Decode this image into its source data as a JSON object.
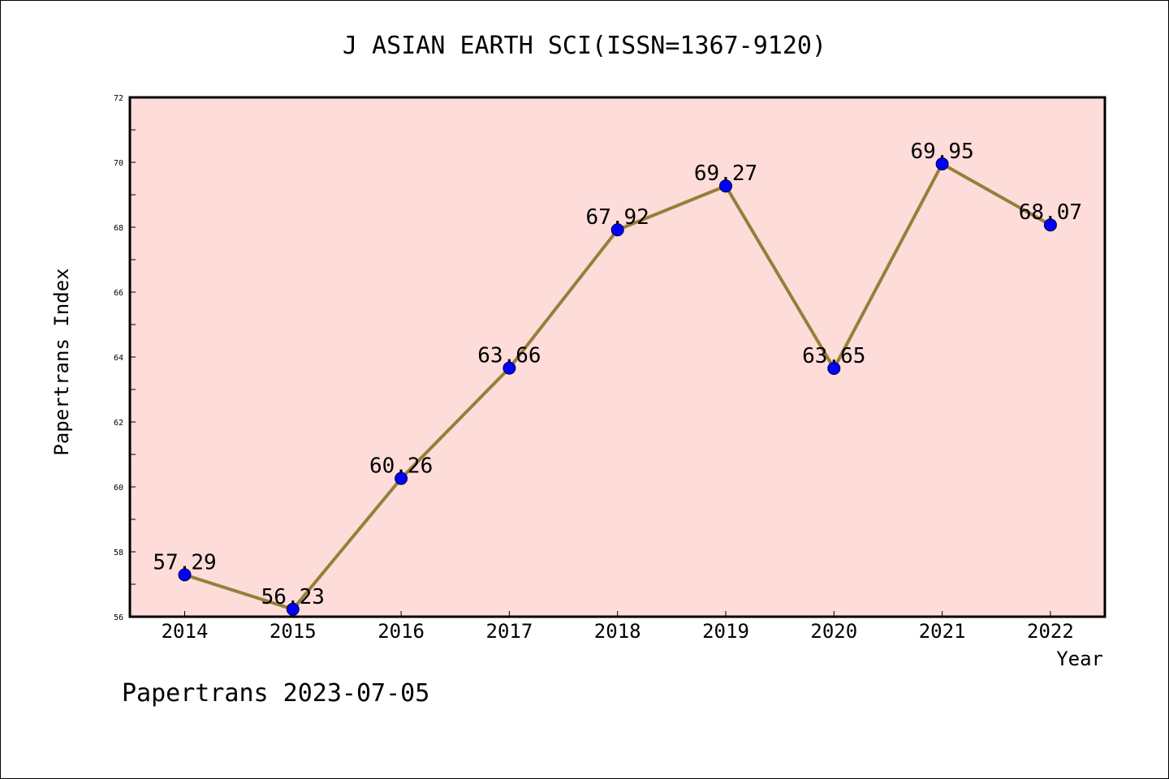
{
  "chart_data": {
    "type": "line",
    "title": "J ASIAN EARTH SCI(ISSN=1367-9120)",
    "xlabel": "Year",
    "ylabel": "Papertrans Index",
    "categories": [
      "2014",
      "2015",
      "2016",
      "2017",
      "2018",
      "2019",
      "2020",
      "2021",
      "2022"
    ],
    "series": [
      {
        "values": [
          57.29,
          56.23,
          60.26,
          63.66,
          67.92,
          69.27,
          63.65,
          69.95,
          68.07
        ],
        "labels": [
          "57.29",
          "56.23",
          "60.26",
          "63.66",
          "67.92",
          "69.27",
          "63.65",
          "69.95",
          "68.07"
        ]
      }
    ],
    "ylim": [
      56,
      72
    ],
    "yticks": [
      "56",
      "58",
      "60",
      "62",
      "64",
      "66",
      "68",
      "70",
      "72"
    ],
    "grid": false,
    "colors": {
      "plot_background": "#fddcda",
      "line": "#94803a",
      "marker": "#0000ff"
    }
  },
  "footer": "Papertrans 2023-07-05"
}
